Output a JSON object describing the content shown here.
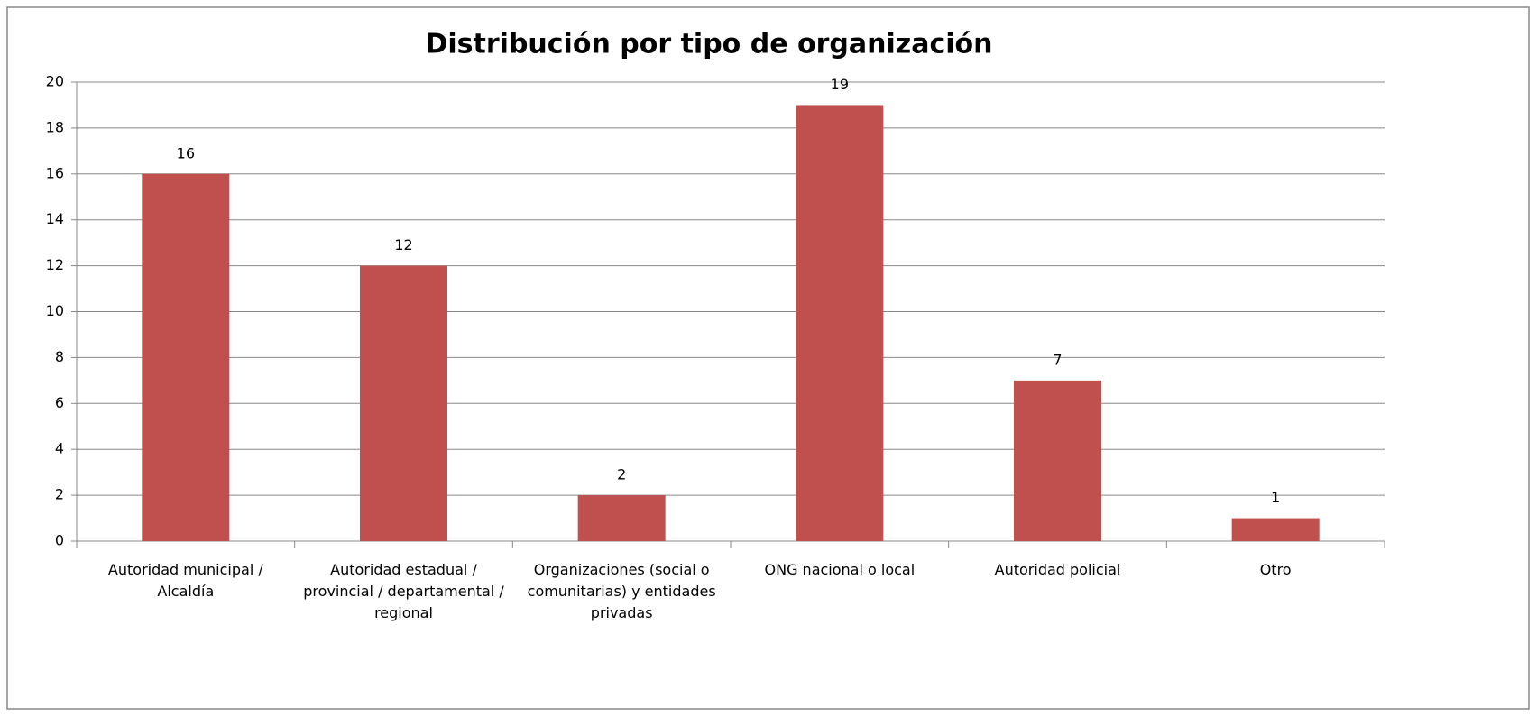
{
  "chart_data": {
    "type": "bar",
    "title": "Distribución por tipo de organización",
    "categories": [
      "Autoridad municipal / Alcaldía",
      "Autoridad estadual / provincial / departamental / regional",
      "Organizaciones (social o comunitarias) y entidades privadas",
      "ONG nacional o local",
      "Autoridad policial",
      "Otro"
    ],
    "values": [
      16,
      12,
      2,
      19,
      7,
      1
    ],
    "color": "#c0504d",
    "ylim": [
      0,
      20
    ],
    "yticks": [
      0,
      2,
      4,
      6,
      8,
      10,
      12,
      14,
      16,
      18,
      20
    ],
    "grid": true
  }
}
